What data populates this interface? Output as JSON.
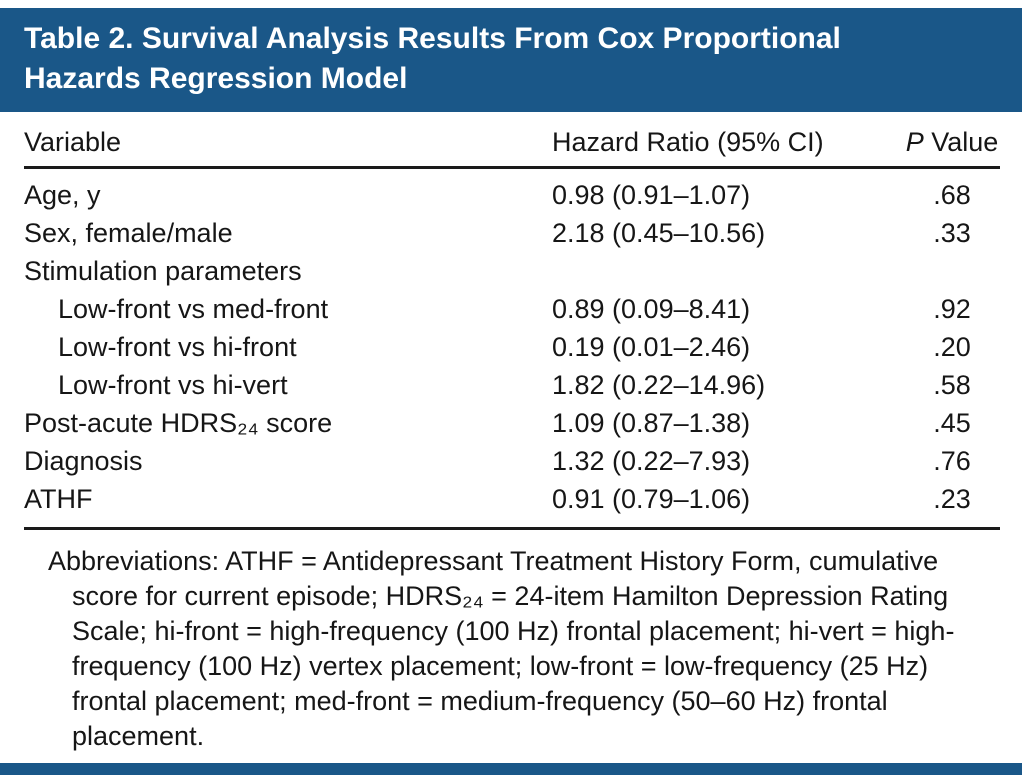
{
  "colors": {
    "bar_blue": "#1a5788",
    "rule": "#1a1a1a",
    "text": "#161616"
  },
  "header": {
    "title": "Table 2. Survival Analysis Results From Cox Proportional Hazards Regression Model"
  },
  "table": {
    "columns": {
      "variable": "Variable",
      "hazard": "Hazard Ratio (95% CI)",
      "p_italic": "P",
      "p_rest": "Value"
    },
    "rows": [
      {
        "variable": "Age, y",
        "hr": "0.98 (0.91–1.07)",
        "p": ".68",
        "indent": false
      },
      {
        "variable": "Sex, female/male",
        "hr": "2.18 (0.45–10.56)",
        "p": ".33",
        "indent": false
      },
      {
        "variable": "Stimulation parameters",
        "hr": "",
        "p": "",
        "indent": false
      },
      {
        "variable": "Low-front vs med-front",
        "hr": "0.89 (0.09–8.41)",
        "p": ".92",
        "indent": true
      },
      {
        "variable": "Low-front vs hi-front",
        "hr": "0.19 (0.01–2.46)",
        "p": ".20",
        "indent": true
      },
      {
        "variable": "Low-front vs hi-vert",
        "hr": "1.82 (0.22–14.96)",
        "p": ".58",
        "indent": true
      },
      {
        "variable": "Post-acute HDRS₂₄ score",
        "hr": "1.09 (0.87–1.38)",
        "p": ".45",
        "indent": false
      },
      {
        "variable": "Diagnosis",
        "hr": "1.32 (0.22–7.93)",
        "p": ".76",
        "indent": false
      },
      {
        "variable": "ATHF",
        "hr": "0.91 (0.79–1.06)",
        "p": ".23",
        "indent": false
      }
    ],
    "footnote": "Abbreviations: ATHF = Antidepressant Treatment History Form, cumulative score for current episode; HDRS₂₄ = 24-item Hamilton Depression Rating Scale; hi-front = high-frequency (100 Hz) frontal placement; hi-vert = high-frequency (100 Hz) vertex placement; low-front = low-frequency (25 Hz) frontal placement; med-front = medium-frequency (50–60 Hz) frontal placement."
  }
}
